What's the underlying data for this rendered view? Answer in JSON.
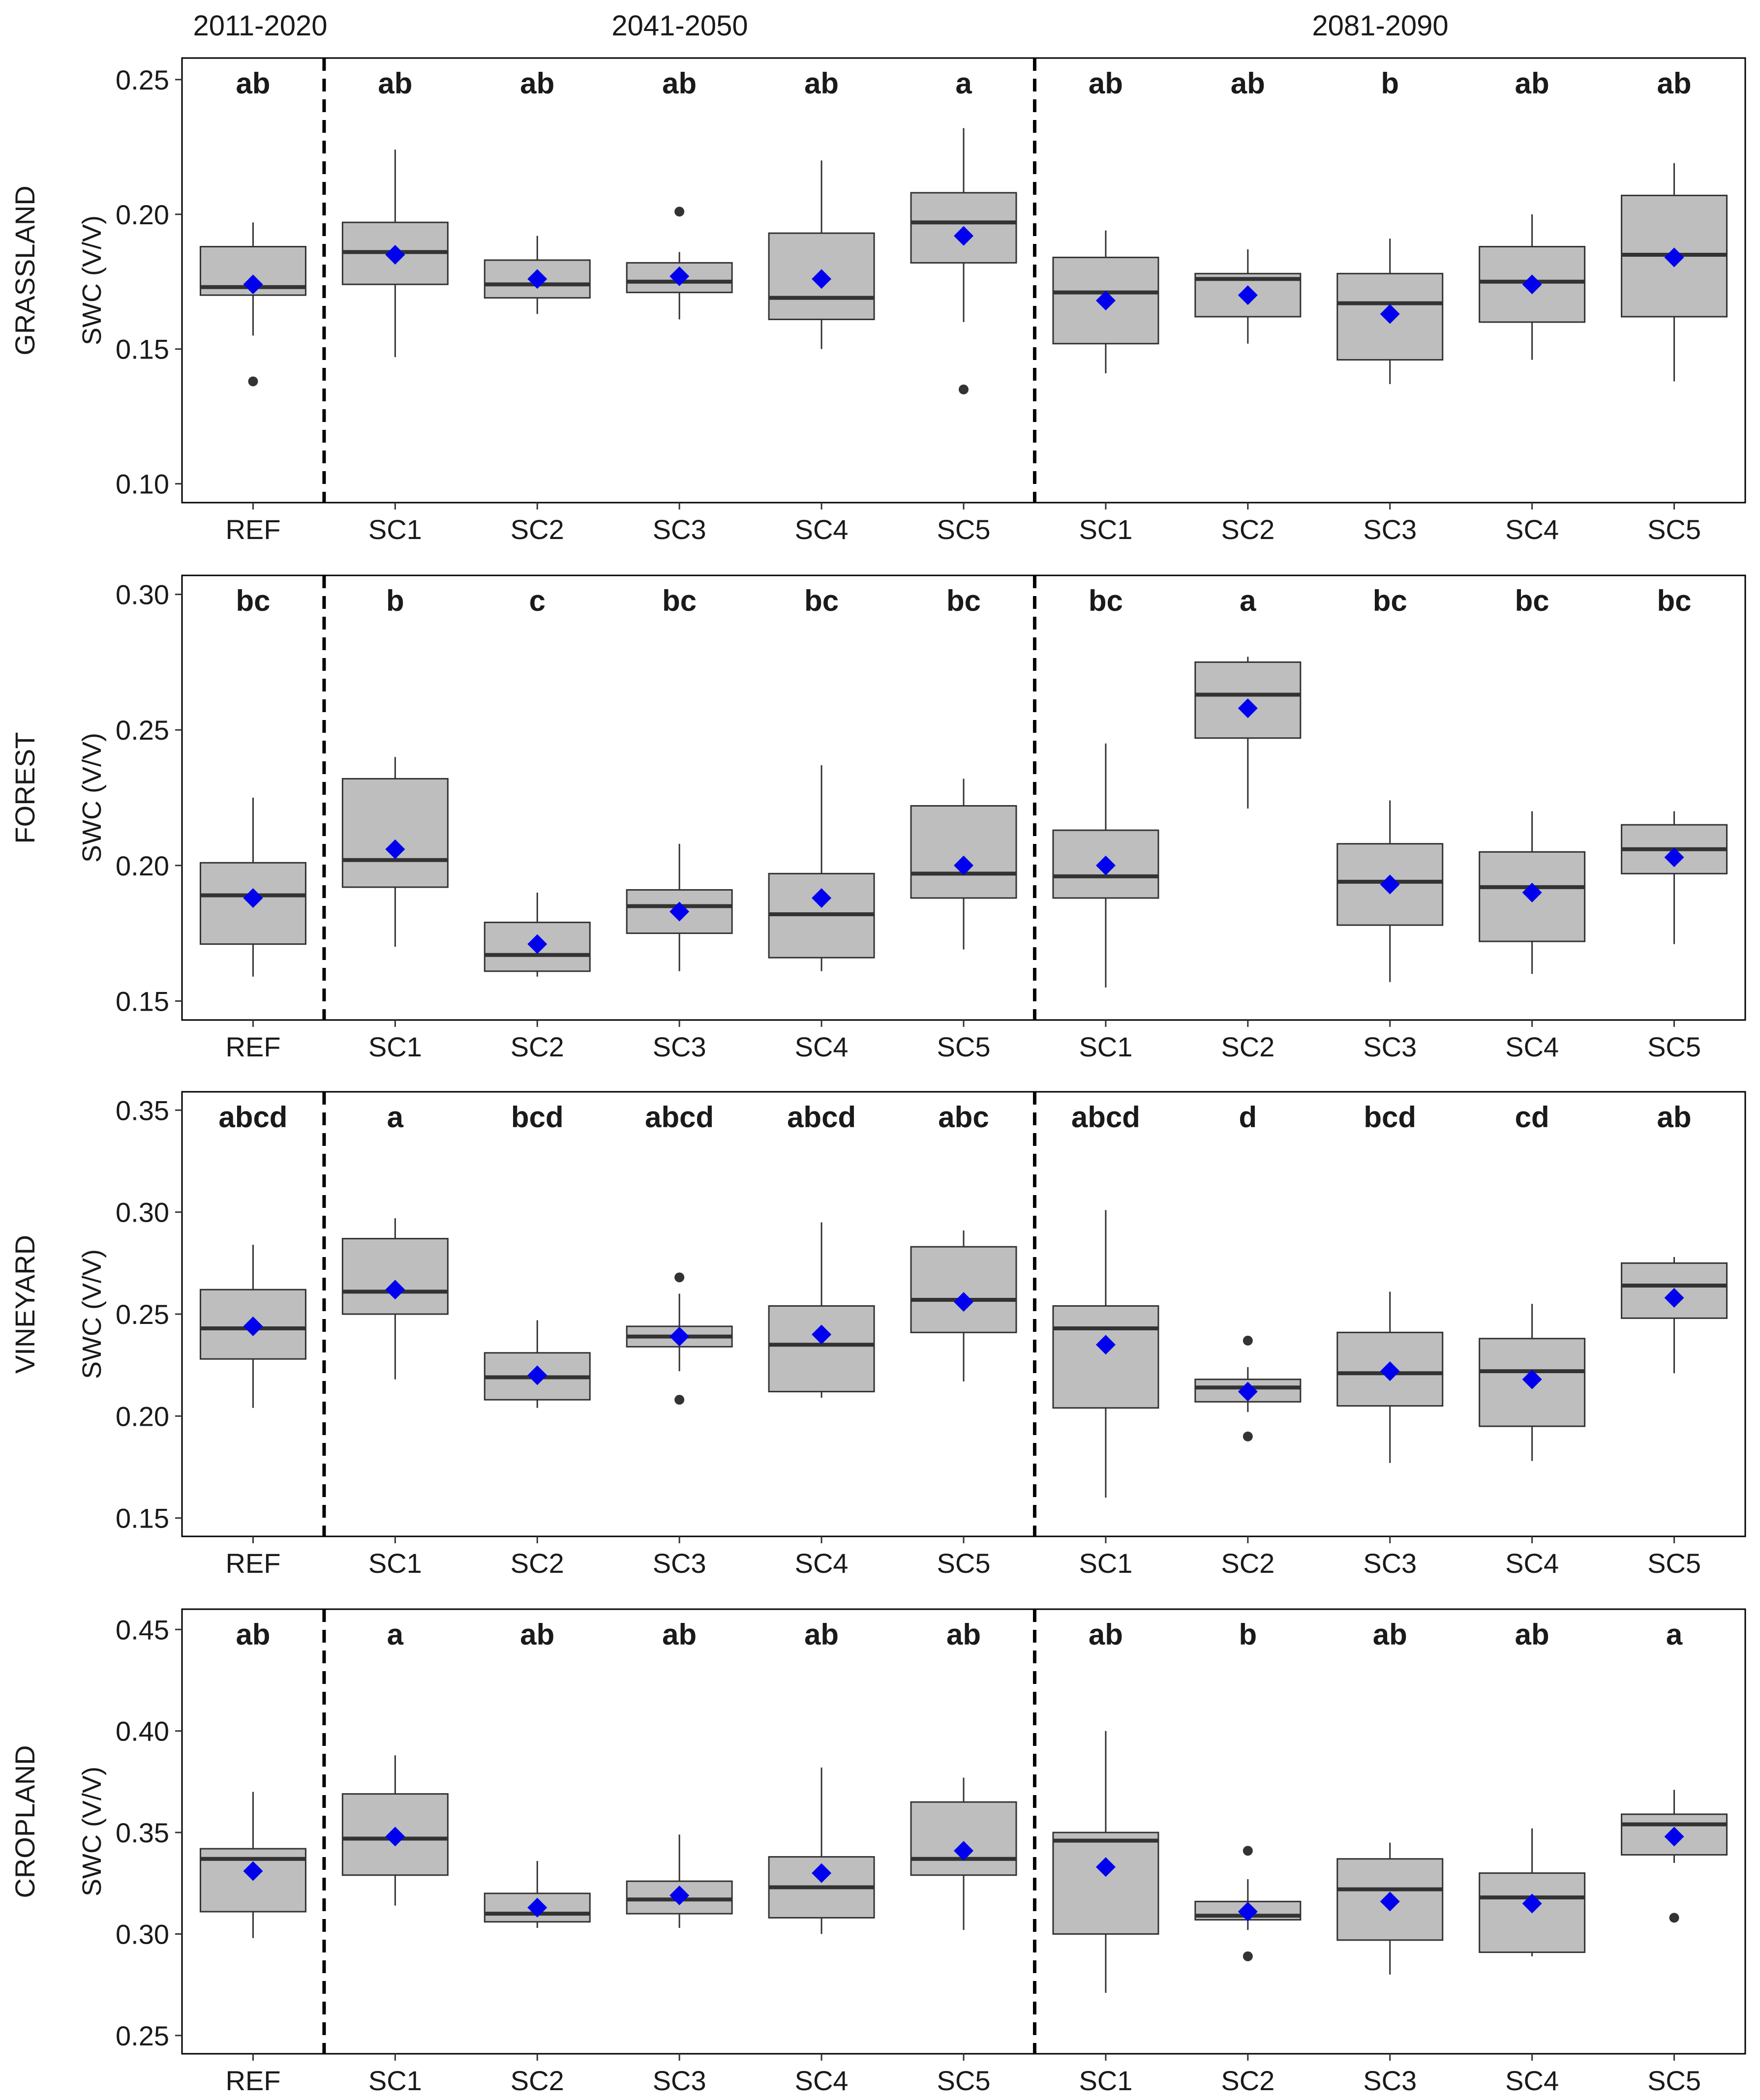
{
  "period_labels": [
    "2011-2020",
    "2041-2050",
    "2081-2090"
  ],
  "colors": {
    "box_fill": "#bebebe",
    "box_stroke": "#333333",
    "mean_marker": "#0000ee",
    "outlier": "#333333",
    "divider": "#000000",
    "text": "#1a1a1a"
  },
  "chart_data": [
    {
      "type": "box",
      "panel_label": "GRASSLAND",
      "ylabel": "SWC (V/V)",
      "ylim": [
        0.093,
        0.258
      ],
      "yticks": [
        0.1,
        0.15,
        0.2,
        0.25
      ],
      "ytick_labels": [
        "0.10",
        "0.15",
        "0.20",
        "0.25"
      ],
      "categories": [
        "REF",
        "SC1",
        "SC2",
        "SC3",
        "SC4",
        "SC5",
        "SC1",
        "SC2",
        "SC3",
        "SC4",
        "SC5"
      ],
      "significance": [
        "ab",
        "ab",
        "ab",
        "ab",
        "ab",
        "a",
        "ab",
        "ab",
        "b",
        "ab",
        "ab"
      ],
      "boxes": [
        {
          "whisker_low": 0.155,
          "q1": 0.17,
          "median": 0.173,
          "q3": 0.188,
          "whisker_high": 0.197,
          "mean": 0.174,
          "outliers": [
            0.138
          ]
        },
        {
          "whisker_low": 0.147,
          "q1": 0.174,
          "median": 0.186,
          "q3": 0.197,
          "whisker_high": 0.224,
          "mean": 0.185,
          "outliers": []
        },
        {
          "whisker_low": 0.163,
          "q1": 0.169,
          "median": 0.174,
          "q3": 0.183,
          "whisker_high": 0.192,
          "mean": 0.176,
          "outliers": []
        },
        {
          "whisker_low": 0.161,
          "q1": 0.171,
          "median": 0.175,
          "q3": 0.182,
          "whisker_high": 0.186,
          "mean": 0.177,
          "outliers": [
            0.201
          ]
        },
        {
          "whisker_low": 0.15,
          "q1": 0.161,
          "median": 0.169,
          "q3": 0.193,
          "whisker_high": 0.22,
          "mean": 0.176,
          "outliers": []
        },
        {
          "whisker_low": 0.16,
          "q1": 0.182,
          "median": 0.197,
          "q3": 0.208,
          "whisker_high": 0.232,
          "mean": 0.192,
          "outliers": [
            0.135
          ]
        },
        {
          "whisker_low": 0.141,
          "q1": 0.152,
          "median": 0.171,
          "q3": 0.184,
          "whisker_high": 0.194,
          "mean": 0.168,
          "outliers": []
        },
        {
          "whisker_low": 0.152,
          "q1": 0.162,
          "median": 0.176,
          "q3": 0.178,
          "whisker_high": 0.187,
          "mean": 0.17,
          "outliers": []
        },
        {
          "whisker_low": 0.137,
          "q1": 0.146,
          "median": 0.167,
          "q3": 0.178,
          "whisker_high": 0.191,
          "mean": 0.163,
          "outliers": []
        },
        {
          "whisker_low": 0.146,
          "q1": 0.16,
          "median": 0.175,
          "q3": 0.188,
          "whisker_high": 0.2,
          "mean": 0.174,
          "outliers": []
        },
        {
          "whisker_low": 0.138,
          "q1": 0.162,
          "median": 0.185,
          "q3": 0.207,
          "whisker_high": 0.219,
          "mean": 0.184,
          "outliers": []
        }
      ]
    },
    {
      "type": "box",
      "panel_label": "FOREST",
      "ylabel": "SWC (V/V)",
      "ylim": [
        0.143,
        0.307
      ],
      "yticks": [
        0.15,
        0.2,
        0.25,
        0.3
      ],
      "ytick_labels": [
        "0.15",
        "0.20",
        "0.25",
        "0.30"
      ],
      "categories": [
        "REF",
        "SC1",
        "SC2",
        "SC3",
        "SC4",
        "SC5",
        "SC1",
        "SC2",
        "SC3",
        "SC4",
        "SC5"
      ],
      "significance": [
        "bc",
        "b",
        "c",
        "bc",
        "bc",
        "bc",
        "bc",
        "a",
        "bc",
        "bc",
        "bc"
      ],
      "boxes": [
        {
          "whisker_low": 0.159,
          "q1": 0.171,
          "median": 0.189,
          "q3": 0.201,
          "whisker_high": 0.225,
          "mean": 0.188,
          "outliers": []
        },
        {
          "whisker_low": 0.17,
          "q1": 0.192,
          "median": 0.202,
          "q3": 0.232,
          "whisker_high": 0.24,
          "mean": 0.206,
          "outliers": []
        },
        {
          "whisker_low": 0.159,
          "q1": 0.161,
          "median": 0.167,
          "q3": 0.179,
          "whisker_high": 0.19,
          "mean": 0.171,
          "outliers": []
        },
        {
          "whisker_low": 0.161,
          "q1": 0.175,
          "median": 0.185,
          "q3": 0.191,
          "whisker_high": 0.208,
          "mean": 0.183,
          "outliers": []
        },
        {
          "whisker_low": 0.161,
          "q1": 0.166,
          "median": 0.182,
          "q3": 0.197,
          "whisker_high": 0.237,
          "mean": 0.188,
          "outliers": []
        },
        {
          "whisker_low": 0.169,
          "q1": 0.188,
          "median": 0.197,
          "q3": 0.222,
          "whisker_high": 0.232,
          "mean": 0.2,
          "outliers": []
        },
        {
          "whisker_low": 0.155,
          "q1": 0.188,
          "median": 0.196,
          "q3": 0.213,
          "whisker_high": 0.245,
          "mean": 0.2,
          "outliers": []
        },
        {
          "whisker_low": 0.221,
          "q1": 0.247,
          "median": 0.263,
          "q3": 0.275,
          "whisker_high": 0.277,
          "mean": 0.258,
          "outliers": []
        },
        {
          "whisker_low": 0.157,
          "q1": 0.178,
          "median": 0.194,
          "q3": 0.208,
          "whisker_high": 0.224,
          "mean": 0.193,
          "outliers": []
        },
        {
          "whisker_low": 0.16,
          "q1": 0.172,
          "median": 0.192,
          "q3": 0.205,
          "whisker_high": 0.22,
          "mean": 0.19,
          "outliers": []
        },
        {
          "whisker_low": 0.171,
          "q1": 0.197,
          "median": 0.206,
          "q3": 0.215,
          "whisker_high": 0.22,
          "mean": 0.203,
          "outliers": []
        }
      ]
    },
    {
      "type": "box",
      "panel_label": "VINEYARD",
      "ylabel": "SWC (V/V)",
      "ylim": [
        0.141,
        0.359
      ],
      "yticks": [
        0.15,
        0.2,
        0.25,
        0.3,
        0.35
      ],
      "ytick_labels": [
        "0.15",
        "0.20",
        "0.25",
        "0.30",
        "0.35"
      ],
      "categories": [
        "REF",
        "SC1",
        "SC2",
        "SC3",
        "SC4",
        "SC5",
        "SC1",
        "SC2",
        "SC3",
        "SC4",
        "SC5"
      ],
      "significance": [
        "abcd",
        "a",
        "bcd",
        "abcd",
        "abcd",
        "abc",
        "abcd",
        "d",
        "bcd",
        "cd",
        "ab"
      ],
      "boxes": [
        {
          "whisker_low": 0.204,
          "q1": 0.228,
          "median": 0.243,
          "q3": 0.262,
          "whisker_high": 0.284,
          "mean": 0.244,
          "outliers": []
        },
        {
          "whisker_low": 0.218,
          "q1": 0.25,
          "median": 0.261,
          "q3": 0.287,
          "whisker_high": 0.297,
          "mean": 0.262,
          "outliers": []
        },
        {
          "whisker_low": 0.204,
          "q1": 0.208,
          "median": 0.219,
          "q3": 0.231,
          "whisker_high": 0.247,
          "mean": 0.22,
          "outliers": []
        },
        {
          "whisker_low": 0.222,
          "q1": 0.234,
          "median": 0.239,
          "q3": 0.244,
          "whisker_high": 0.26,
          "mean": 0.239,
          "outliers": [
            0.268,
            0.208
          ]
        },
        {
          "whisker_low": 0.209,
          "q1": 0.212,
          "median": 0.235,
          "q3": 0.254,
          "whisker_high": 0.295,
          "mean": 0.24,
          "outliers": []
        },
        {
          "whisker_low": 0.217,
          "q1": 0.241,
          "median": 0.257,
          "q3": 0.283,
          "whisker_high": 0.291,
          "mean": 0.256,
          "outliers": []
        },
        {
          "whisker_low": 0.16,
          "q1": 0.204,
          "median": 0.243,
          "q3": 0.254,
          "whisker_high": 0.301,
          "mean": 0.235,
          "outliers": []
        },
        {
          "whisker_low": 0.202,
          "q1": 0.207,
          "median": 0.214,
          "q3": 0.218,
          "whisker_high": 0.224,
          "mean": 0.212,
          "outliers": [
            0.237,
            0.19
          ]
        },
        {
          "whisker_low": 0.177,
          "q1": 0.205,
          "median": 0.221,
          "q3": 0.241,
          "whisker_high": 0.261,
          "mean": 0.222,
          "outliers": []
        },
        {
          "whisker_low": 0.178,
          "q1": 0.195,
          "median": 0.222,
          "q3": 0.238,
          "whisker_high": 0.255,
          "mean": 0.218,
          "outliers": []
        },
        {
          "whisker_low": 0.221,
          "q1": 0.248,
          "median": 0.264,
          "q3": 0.275,
          "whisker_high": 0.278,
          "mean": 0.258,
          "outliers": []
        }
      ]
    },
    {
      "type": "box",
      "panel_label": "CROPLAND",
      "ylabel": "SWC (V/V)",
      "ylim": [
        0.241,
        0.46
      ],
      "yticks": [
        0.25,
        0.3,
        0.35,
        0.4,
        0.45
      ],
      "ytick_labels": [
        "0.25",
        "0.30",
        "0.35",
        "0.40",
        "0.45"
      ],
      "categories": [
        "REF",
        "SC1",
        "SC2",
        "SC3",
        "SC4",
        "SC5",
        "SC1",
        "SC2",
        "SC3",
        "SC4",
        "SC5"
      ],
      "significance": [
        "ab",
        "a",
        "ab",
        "ab",
        "ab",
        "ab",
        "ab",
        "b",
        "ab",
        "ab",
        "a"
      ],
      "boxes": [
        {
          "whisker_low": 0.298,
          "q1": 0.311,
          "median": 0.337,
          "q3": 0.342,
          "whisker_high": 0.37,
          "mean": 0.331,
          "outliers": []
        },
        {
          "whisker_low": 0.314,
          "q1": 0.329,
          "median": 0.347,
          "q3": 0.369,
          "whisker_high": 0.388,
          "mean": 0.348,
          "outliers": []
        },
        {
          "whisker_low": 0.303,
          "q1": 0.306,
          "median": 0.31,
          "q3": 0.32,
          "whisker_high": 0.336,
          "mean": 0.313,
          "outliers": []
        },
        {
          "whisker_low": 0.303,
          "q1": 0.31,
          "median": 0.317,
          "q3": 0.326,
          "whisker_high": 0.349,
          "mean": 0.319,
          "outliers": []
        },
        {
          "whisker_low": 0.3,
          "q1": 0.308,
          "median": 0.323,
          "q3": 0.338,
          "whisker_high": 0.382,
          "mean": 0.33,
          "outliers": []
        },
        {
          "whisker_low": 0.302,
          "q1": 0.329,
          "median": 0.337,
          "q3": 0.365,
          "whisker_high": 0.377,
          "mean": 0.341,
          "outliers": []
        },
        {
          "whisker_low": 0.271,
          "q1": 0.3,
          "median": 0.346,
          "q3": 0.35,
          "whisker_high": 0.4,
          "mean": 0.333,
          "outliers": []
        },
        {
          "whisker_low": 0.302,
          "q1": 0.307,
          "median": 0.309,
          "q3": 0.316,
          "whisker_high": 0.327,
          "mean": 0.311,
          "outliers": [
            0.341,
            0.289
          ]
        },
        {
          "whisker_low": 0.28,
          "q1": 0.297,
          "median": 0.322,
          "q3": 0.337,
          "whisker_high": 0.345,
          "mean": 0.316,
          "outliers": []
        },
        {
          "whisker_low": 0.289,
          "q1": 0.291,
          "median": 0.318,
          "q3": 0.33,
          "whisker_high": 0.352,
          "mean": 0.315,
          "outliers": []
        },
        {
          "whisker_low": 0.335,
          "q1": 0.339,
          "median": 0.354,
          "q3": 0.359,
          "whisker_high": 0.371,
          "mean": 0.348,
          "outliers": [
            0.308
          ]
        }
      ]
    }
  ]
}
